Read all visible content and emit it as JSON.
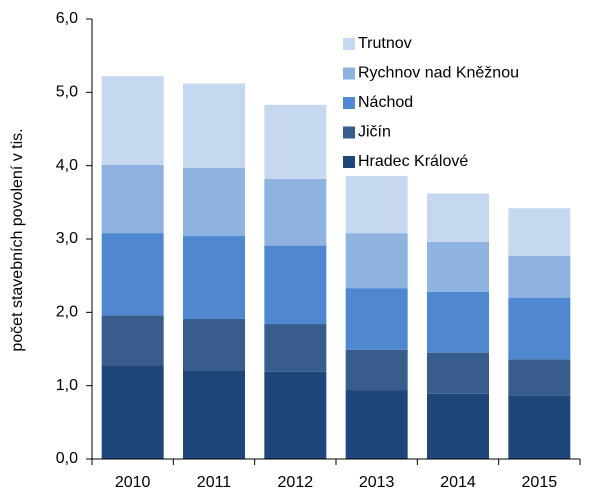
{
  "chart_data": {
    "type": "bar",
    "stacked": true,
    "y_label": "počet stavebních povolení v tis.",
    "categories": [
      "2010",
      "2011",
      "2012",
      "2013",
      "2014",
      "2015"
    ],
    "series": [
      {
        "name": "Hradec Králové",
        "color": "#1f4678",
        "values": [
          1.28,
          1.2,
          1.19,
          0.94,
          0.89,
          0.86
        ]
      },
      {
        "name": "Jičín",
        "color": "#385d8c",
        "values": [
          0.68,
          0.71,
          0.65,
          0.55,
          0.56,
          0.5
        ]
      },
      {
        "name": "Náchod",
        "color": "#4f88d0",
        "values": [
          1.12,
          1.13,
          1.07,
          0.84,
          0.83,
          0.84
        ]
      },
      {
        "name": "Rychnov nad Kněžnou",
        "color": "#8eb3e0",
        "values": [
          0.93,
          0.93,
          0.91,
          0.75,
          0.68,
          0.57
        ]
      },
      {
        "name": "Trutnov",
        "color": "#c6d8f0",
        "values": [
          1.21,
          1.15,
          1.01,
          0.78,
          0.66,
          0.65
        ]
      }
    ],
    "ylim": [
      0,
      6
    ],
    "yticks": [
      {
        "value": 0,
        "label": "0,0"
      },
      {
        "value": 1,
        "label": "1,0"
      },
      {
        "value": 2,
        "label": "2,0"
      },
      {
        "value": 3,
        "label": "3,0"
      },
      {
        "value": 4,
        "label": "4,0"
      },
      {
        "value": 5,
        "label": "5,0"
      },
      {
        "value": 6,
        "label": "6,0"
      }
    ],
    "legend": "top-right"
  }
}
